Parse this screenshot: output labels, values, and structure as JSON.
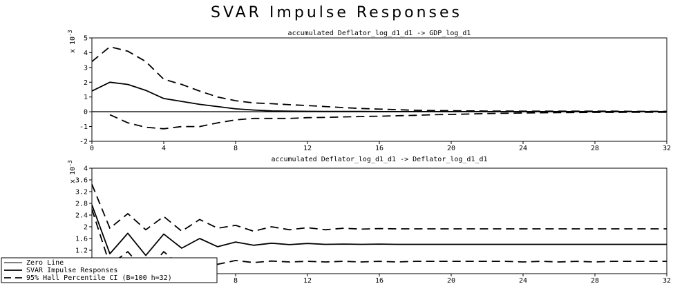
{
  "title": "SVAR Impulse Responses",
  "legend": {
    "items": [
      {
        "label": "Zero Line",
        "style": "solid-thin"
      },
      {
        "label": "SVAR Impulse Responses",
        "style": "solid"
      },
      {
        "label": "95% Hall Percentile CI (B=100 h=32)",
        "style": "dashed"
      }
    ]
  },
  "chart_data": [
    {
      "type": "line",
      "title": "accumulated Deflator_log_d1_d1 -> GDP_log_d1",
      "scale_label": "x 10",
      "scale_exp": "-3",
      "xlim": [
        0,
        32
      ],
      "ylim": [
        -2,
        5
      ],
      "x_ticks": [
        0,
        4,
        8,
        12,
        16,
        20,
        24,
        28,
        32
      ],
      "y_ticks": [
        -2,
        -1,
        0,
        1,
        2,
        3,
        4,
        5
      ],
      "x": [
        0,
        1,
        2,
        3,
        4,
        5,
        6,
        7,
        8,
        9,
        10,
        11,
        12,
        13,
        14,
        15,
        16,
        17,
        18,
        19,
        20,
        21,
        22,
        23,
        24,
        25,
        26,
        27,
        28,
        29,
        30,
        31,
        32
      ],
      "series": [
        {
          "name": "Zero Line",
          "style": "solid-thin",
          "values": [
            0,
            0,
            0,
            0,
            0,
            0,
            0,
            0,
            0,
            0,
            0,
            0,
            0,
            0,
            0,
            0,
            0,
            0,
            0,
            0,
            0,
            0,
            0,
            0,
            0,
            0,
            0,
            0,
            0,
            0,
            0,
            0,
            0
          ]
        },
        {
          "name": "SVAR Impulse Responses",
          "style": "solid",
          "values": [
            1.4,
            2.0,
            1.85,
            1.45,
            0.9,
            0.7,
            0.5,
            0.35,
            0.2,
            0.12,
            0.06,
            0.04,
            0.03,
            0.02,
            0.02,
            0.02,
            0.01,
            0.01,
            0.01,
            0.01,
            0.01,
            0.01,
            0.01,
            0.01,
            0.01,
            0.01,
            0.01,
            0.01,
            0.01,
            0.01,
            0.01,
            0.01,
            0.01
          ]
        },
        {
          "name": "95% Hall Percentile CI (B=100 h=32)",
          "style": "dashed",
          "values": [
            3.4,
            4.4,
            4.1,
            3.4,
            2.2,
            1.85,
            1.4,
            1.0,
            0.75,
            0.6,
            0.55,
            0.48,
            0.42,
            0.35,
            0.28,
            0.22,
            0.18,
            0.14,
            0.1,
            0.08,
            0.07,
            0.06,
            0.05,
            0.05,
            0.04,
            0.04,
            0.04,
            0.04,
            0.04,
            0.04,
            0.03,
            0.03,
            0.03
          ]
        },
        {
          "name": "95% Hall Percentile CI (B=100 h=32)",
          "style": "dashed",
          "values": [
            null,
            -0.2,
            -0.75,
            -1.05,
            -1.15,
            -1.0,
            -1.0,
            -0.75,
            -0.55,
            -0.45,
            -0.45,
            -0.45,
            -0.4,
            -0.38,
            -0.35,
            -0.32,
            -0.3,
            -0.27,
            -0.24,
            -0.2,
            -0.18,
            -0.15,
            -0.12,
            -0.1,
            -0.08,
            -0.07,
            -0.06,
            -0.05,
            -0.04,
            -0.04,
            -0.03,
            -0.03,
            -0.03
          ]
        }
      ]
    },
    {
      "type": "line",
      "title": "accumulated Deflator_log_d1_d1 -> Deflator_log_d1_d1",
      "scale_label": "x 10",
      "scale_exp": "-3",
      "xlim": [
        0,
        32
      ],
      "ylim": [
        0.4,
        4.0
      ],
      "x_ticks": [
        0,
        4,
        8,
        12,
        16,
        20,
        24,
        28,
        32
      ],
      "y_ticks": [
        0.4,
        0.8,
        1.2,
        1.6,
        2.0,
        2.4,
        2.8,
        3.2,
        3.6,
        4.0
      ],
      "x": [
        0,
        1,
        2,
        3,
        4,
        5,
        6,
        7,
        8,
        9,
        10,
        11,
        12,
        13,
        14,
        15,
        16,
        17,
        18,
        19,
        20,
        21,
        22,
        23,
        24,
        25,
        26,
        27,
        28,
        29,
        30,
        31,
        32
      ],
      "series": [
        {
          "name": "SVAR Impulse Responses",
          "style": "solid",
          "values": [
            2.75,
            1.08,
            1.78,
            1.02,
            1.75,
            1.27,
            1.6,
            1.32,
            1.48,
            1.37,
            1.44,
            1.39,
            1.43,
            1.4,
            1.41,
            1.4,
            1.41,
            1.4,
            1.4,
            1.4,
            1.4,
            1.4,
            1.4,
            1.4,
            1.4,
            1.4,
            1.4,
            1.4,
            1.4,
            1.4,
            1.4,
            1.4,
            1.4
          ]
        },
        {
          "name": "95% Hall Percentile CI (B=100 h=32)",
          "style": "dashed",
          "values": [
            3.45,
            1.95,
            2.45,
            1.9,
            2.35,
            1.85,
            2.25,
            1.95,
            2.05,
            1.85,
            2.0,
            1.9,
            1.97,
            1.9,
            1.95,
            1.92,
            1.94,
            1.93,
            1.93,
            1.93,
            1.93,
            1.93,
            1.93,
            1.93,
            1.93,
            1.93,
            1.93,
            1.93,
            1.93,
            1.93,
            1.93,
            1.93,
            1.93
          ]
        },
        {
          "name": "95% Hall Percentile CI (B=100 h=32)",
          "style": "dashed",
          "values": [
            2.6,
            0.7,
            1.15,
            0.45,
            1.15,
            0.62,
            0.9,
            0.72,
            0.85,
            0.78,
            0.83,
            0.8,
            0.82,
            0.8,
            0.82,
            0.8,
            0.82,
            0.8,
            0.82,
            0.82,
            0.82,
            0.82,
            0.82,
            0.82,
            0.8,
            0.82,
            0.8,
            0.82,
            0.8,
            0.82,
            0.82,
            0.82,
            0.82
          ]
        }
      ]
    }
  ]
}
